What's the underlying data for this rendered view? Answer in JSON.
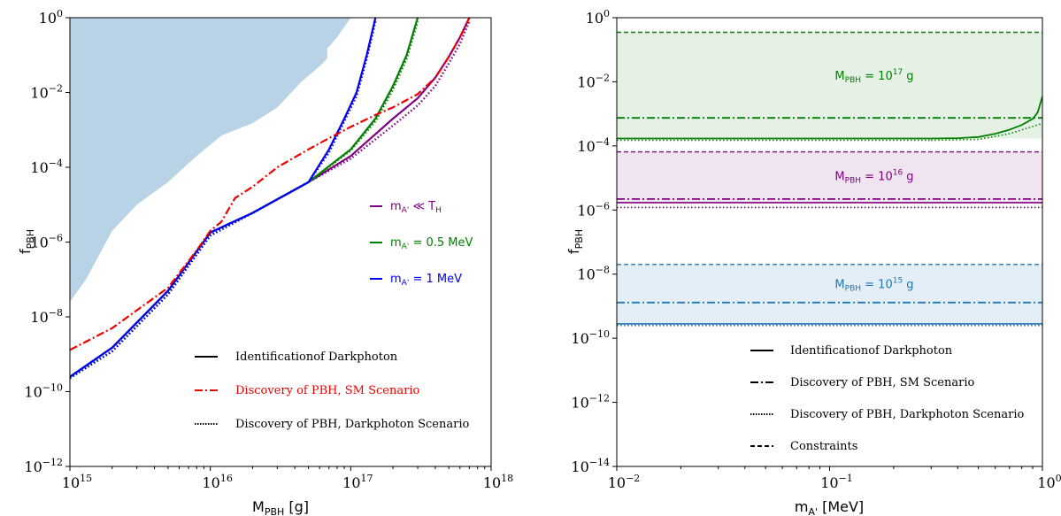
{
  "chart_data": [
    {
      "type": "line",
      "xlabel": "M",
      "xlabel_sub": "PBH",
      "xlabel_unit": " [g]",
      "ylabel": "f",
      "ylabel_sub": "PBH",
      "xscale": "log",
      "yscale": "log",
      "xlim": [
        1000000000000000.0,
        1e+18
      ],
      "ylim": [
        1e-12,
        1
      ],
      "x_ticks": [
        {
          "base": "10",
          "exp": "15",
          "value": 1000000000000000.0
        },
        {
          "base": "10",
          "exp": "16",
          "value": 1e+16
        },
        {
          "base": "10",
          "exp": "17",
          "value": 1e+17
        },
        {
          "base": "10",
          "exp": "18",
          "value": 1e+18
        }
      ],
      "y_ticks": [
        {
          "base": "10",
          "exp": "0",
          "value": 1
        },
        {
          "base": "10",
          "exp": "−2",
          "value": 0.01
        },
        {
          "base": "10",
          "exp": "−4",
          "value": 0.0001
        },
        {
          "base": "10",
          "exp": "−6",
          "value": 1e-06
        },
        {
          "base": "10",
          "exp": "−8",
          "value": 1e-08
        },
        {
          "base": "10",
          "exp": "−10",
          "value": 1e-10
        },
        {
          "base": "10",
          "exp": "−12",
          "value": 1e-12
        }
      ],
      "excluded_region": {
        "color": "#b9d3e6",
        "boundary_x": [
          1000000000000000.0,
          1300000000000000.0,
          2000000000000000.0,
          3000000000000000.0,
          5000000000000000.0,
          8000000000000000.0,
          1.2e+16,
          2e+16,
          3e+16,
          4.5e+16,
          6e+16,
          6.8e+16,
          6.8e+16,
          8e+16,
          1e+17
        ],
        "boundary_y": [
          2.5e-08,
          1e-07,
          2e-06,
          1e-05,
          4e-05,
          0.0002,
          0.0007,
          0.0015,
          0.004,
          0.02,
          0.05,
          0.08,
          0.15,
          0.3,
          1
        ]
      },
      "series": [
        {
          "color": "#800080",
          "style": "solid",
          "x": [
            1000000000000000.0,
            2000000000000000.0,
            5000000000000000.0,
            1e+16,
            2e+16,
            5e+16,
            1e+17,
            2e+17,
            3e+17,
            4e+17,
            5e+17,
            6e+17,
            7e+17
          ],
          "y": [
            2.5e-10,
            1.5e-09,
            5e-08,
            1.8e-06,
            6e-06,
            4e-05,
            0.0002,
            0.002,
            0.007,
            0.025,
            0.09,
            0.3,
            1
          ]
        },
        {
          "color": "#800080",
          "style": "dotted",
          "x": [
            1000000000000000.0,
            2000000000000000.0,
            5000000000000000.0,
            1e+16,
            2e+16,
            5e+16,
            1e+17,
            2e+17,
            3e+17,
            4e+17,
            5e+17,
            6e+17,
            7e+17
          ],
          "y": [
            2.3e-10,
            1.2e-09,
            4e-08,
            1.5e-06,
            6e-06,
            4e-05,
            0.00017,
            0.0013,
            0.0045,
            0.015,
            0.06,
            0.2,
            0.8
          ]
        },
        {
          "color": "#008000",
          "style": "solid",
          "x": [
            1000000000000000.0,
            2000000000000000.0,
            5000000000000000.0,
            1e+16,
            2e+16,
            5e+16,
            1e+17,
            1.5e+17,
            2e+17,
            2.5e+17,
            3e+17
          ],
          "y": [
            2.5e-10,
            1.5e-09,
            5e-08,
            1.8e-06,
            6e-06,
            4e-05,
            0.0003,
            0.002,
            0.015,
            0.1,
            1
          ]
        },
        {
          "color": "#008000",
          "style": "dotted",
          "x": [
            1000000000000000.0,
            2000000000000000.0,
            5000000000000000.0,
            1e+16,
            2e+16,
            5e+16,
            1e+17,
            1.5e+17,
            2e+17,
            2.5e+17,
            3e+17
          ],
          "y": [
            2.3e-10,
            1.2e-09,
            4e-08,
            1.5e-06,
            6e-06,
            4e-05,
            0.00028,
            0.0017,
            0.012,
            0.08,
            0.8
          ]
        },
        {
          "color": "#0000ee",
          "style": "solid",
          "x": [
            1000000000000000.0,
            2000000000000000.0,
            5000000000000000.0,
            1e+16,
            2e+16,
            5e+16,
            7e+16,
            9e+16,
            1.1e+17,
            1.3e+17,
            1.5e+17
          ],
          "y": [
            2.5e-10,
            1.5e-09,
            5e-08,
            1.8e-06,
            6e-06,
            4e-05,
            0.0003,
            0.002,
            0.01,
            0.1,
            1
          ]
        },
        {
          "color": "#0000ee",
          "style": "dotted",
          "x": [
            1000000000000000.0,
            2000000000000000.0,
            5000000000000000.0,
            1e+16,
            2e+16,
            5e+16,
            7e+16,
            9e+16,
            1.1e+17,
            1.3e+17,
            1.5e+17
          ],
          "y": [
            2.3e-10,
            1.2e-09,
            4e-08,
            1.5e-06,
            6e-06,
            4e-05,
            0.00025,
            0.0017,
            0.008,
            0.08,
            0.8
          ]
        },
        {
          "color": "#ee0000",
          "style": "dashdot",
          "x": [
            1000000000000000.0,
            2000000000000000.0,
            5000000000000000.0,
            8000000000000000.0,
            1e+16,
            1.2e+16,
            1.5e+16,
            2e+16,
            3e+16,
            5e+16,
            7e+16,
            1e+17,
            1.5e+17,
            2e+17,
            3e+17,
            4e+17,
            5e+17,
            6e+17,
            7e+17
          ],
          "y": [
            1.3e-09,
            5e-09,
            6e-08,
            6e-07,
            2e-06,
            3.5e-06,
            1.5e-05,
            3e-05,
            0.0001,
            0.0003,
            0.0006,
            0.0012,
            0.0025,
            0.004,
            0.009,
            0.025,
            0.09,
            0.3,
            1
          ]
        }
      ],
      "legend": {
        "placement": "right",
        "mass_entries": [
          {
            "color": "#800080",
            "base": "m",
            "sub": "A'",
            "rest": " ≪ T",
            "sub2": "H"
          },
          {
            "color": "#008000",
            "base": "m",
            "sub": "A'",
            "rest": " = 0.5 MeV",
            "sub2": ""
          },
          {
            "color": "#0000ee",
            "base": "m",
            "sub": "A'",
            "rest": " = 1 MeV",
            "sub2": ""
          }
        ],
        "style_entries": [
          {
            "label": "Identificationof Darkphoton",
            "style": "solid",
            "color": "#000000"
          },
          {
            "label": "Discovery of PBH, SM Scenario",
            "style": "dashdot",
            "color": "#ee0000"
          },
          {
            "label": "Discovery of PBH, Darkphoton Scenario",
            "style": "dotted",
            "color": "#000000"
          }
        ]
      }
    },
    {
      "type": "line",
      "xlabel": "m",
      "xlabel_sub": "A'",
      "xlabel_unit": " [MeV]",
      "ylabel": "f",
      "ylabel_sub": "PBH",
      "xscale": "log",
      "yscale": "log",
      "xlim": [
        0.01,
        1
      ],
      "ylim": [
        1e-14,
        1
      ],
      "x_ticks": [
        {
          "base": "10",
          "exp": "−2",
          "value": 0.01
        },
        {
          "base": "10",
          "exp": "−1",
          "value": 0.1
        },
        {
          "base": "10",
          "exp": "0",
          "value": 1
        }
      ],
      "y_ticks": [
        {
          "base": "10",
          "exp": "0",
          "value": 1
        },
        {
          "base": "10",
          "exp": "−2",
          "value": 0.01
        },
        {
          "base": "10",
          "exp": "−4",
          "value": 0.0001
        },
        {
          "base": "10",
          "exp": "−6",
          "value": 1e-06
        },
        {
          "base": "10",
          "exp": "−8",
          "value": 1e-08
        },
        {
          "base": "10",
          "exp": "−10",
          "value": 1e-10
        },
        {
          "base": "10",
          "exp": "−12",
          "value": 1e-12
        },
        {
          "base": "10",
          "exp": "−14",
          "value": 1e-14
        }
      ],
      "bands": [
        {
          "label_base": "M",
          "label_sub": "PBH",
          "label_mid": " = 10",
          "label_exp": "17",
          "label_unit": " g",
          "color": "#008000",
          "fill": "#e4f1e4",
          "constraint": 0.35,
          "sm_discovery": 0.00075,
          "darkphoton_dotted": 0.00015,
          "identification": {
            "x": [
              0.01,
              0.1,
              0.3,
              0.4,
              0.5,
              0.6,
              0.7,
              0.8,
              0.9,
              0.95,
              1.0
            ],
            "y": [
              0.00017,
              0.00017,
              0.00017,
              0.000175,
              0.00019,
              0.00024,
              0.00032,
              0.00045,
              0.0007,
              0.0011,
              0.0035
            ]
          },
          "dotted_rise": {
            "x": [
              0.3,
              0.5,
              0.7,
              0.85,
              0.95,
              1.0
            ],
            "y": [
              0.00015,
              0.00016,
              0.00024,
              0.00036,
              0.00045,
              0.0005
            ]
          }
        },
        {
          "label_base": "M",
          "label_sub": "PBH",
          "label_mid": " = 10",
          "label_exp": "16",
          "label_unit": " g",
          "color": "#800080",
          "fill": "#f1e4f1",
          "constraint": 6.5e-05,
          "sm_discovery": 2.2e-06,
          "identification_flat": 1.7e-06,
          "darkphoton_dotted": 1.2e-06
        },
        {
          "label_base": "M",
          "label_sub": "PBH",
          "label_mid": " = 10",
          "label_exp": "15",
          "label_unit": " g",
          "color": "#1f77b4",
          "fill": "#e4eef6",
          "constraint": 2e-08,
          "sm_discovery": 1.3e-09,
          "identification_flat": 2.8e-10,
          "darkphoton_dotted": 2.5e-10
        }
      ],
      "legend": {
        "placement": "lower-center",
        "style_entries": [
          {
            "label": "Identificationof Darkphoton",
            "style": "solid"
          },
          {
            "label": "Discovery of PBH, SM Scenario",
            "style": "dashdot"
          },
          {
            "label": "Discovery of PBH, Darkphoton Scenario",
            "style": "dotted"
          },
          {
            "label": "Constraints",
            "style": "dashed"
          }
        ]
      }
    }
  ]
}
